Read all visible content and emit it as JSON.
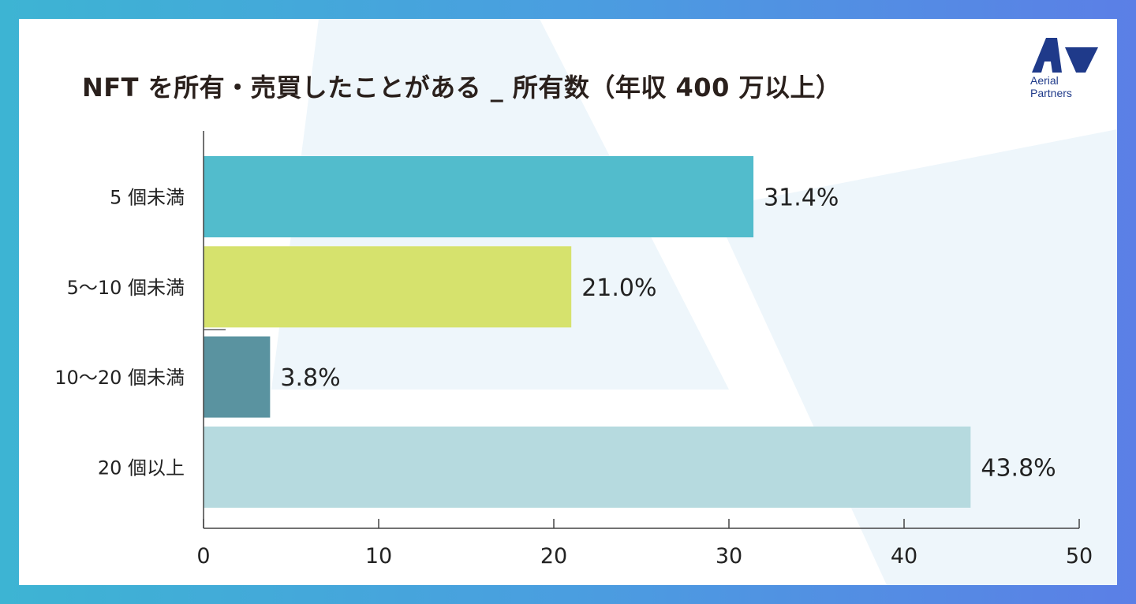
{
  "title": "NFT を所有・売買したことがある _ 所有数（年収 400 万以上）",
  "brand": {
    "logo_text": "Aerial\nPartners",
    "logo_color": "#1f3a8a"
  },
  "frame_colors": {
    "left": "#3db4d3",
    "right": "#5b7fe6"
  },
  "chart_data": {
    "type": "bar",
    "orientation": "horizontal",
    "categories": [
      "5 個未満",
      "5〜10 個未満",
      "10〜20 個未満",
      "20 個以上"
    ],
    "values": [
      31.4,
      21.0,
      3.8,
      43.8
    ],
    "value_labels": [
      "31.4%",
      "21.0%",
      "3.8%",
      "43.8%"
    ],
    "colors": [
      "#52bccc",
      "#d6e26d",
      "#5a93a0",
      "#b6dadf"
    ],
    "xlim": [
      0,
      50
    ],
    "xticks": [
      0,
      10,
      20,
      30,
      40,
      50
    ],
    "grid": false,
    "legend": "none"
  }
}
